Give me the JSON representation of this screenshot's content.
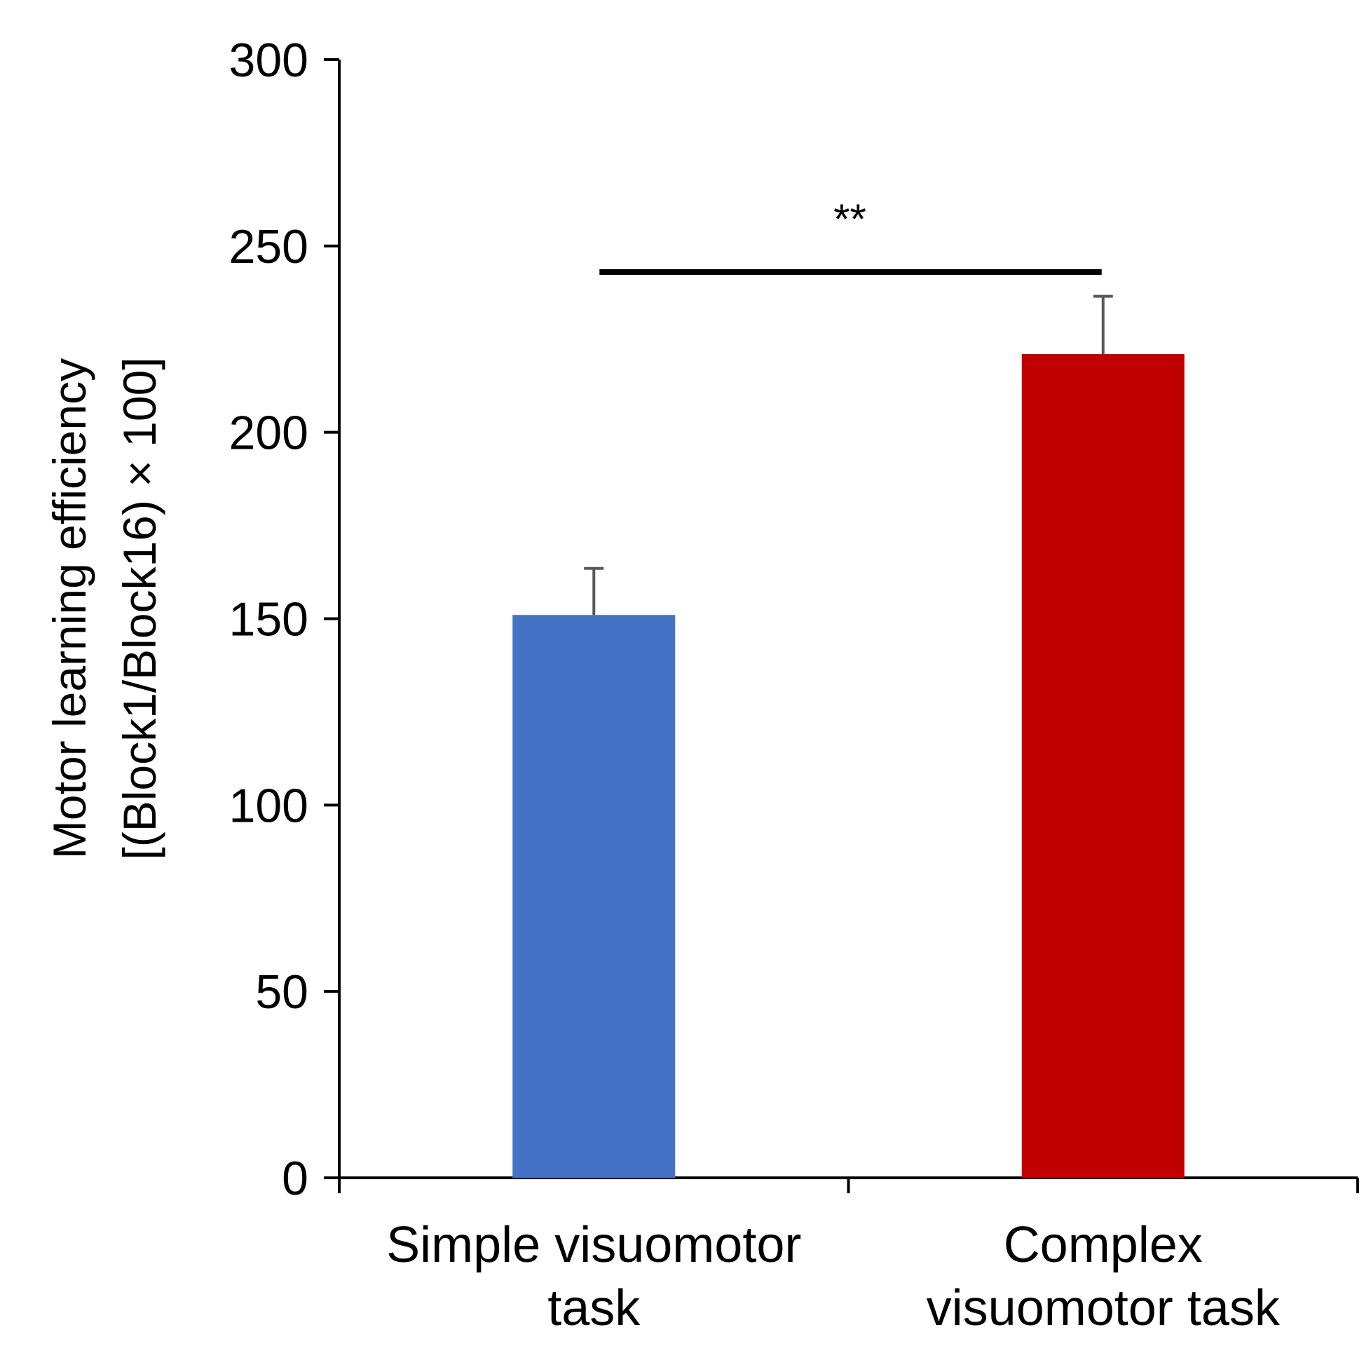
{
  "chart_data": {
    "type": "bar",
    "categories": [
      [
        "Simple visuomotor",
        "task"
      ],
      [
        "Complex",
        "visuomotor task"
      ]
    ],
    "values": [
      151,
      221
    ],
    "errors": [
      12.5,
      15.5
    ],
    "colors": [
      "#4472c4",
      "#c00000"
    ],
    "ylabel": [
      "Motor learning efficiency",
      "[(Block1/Block16) × 100]"
    ],
    "xlabel": "",
    "title": "",
    "ylim": [
      0,
      300
    ],
    "yticks": [
      0,
      50,
      100,
      150,
      200,
      250,
      300
    ],
    "grid": false,
    "legend": "none",
    "significance": {
      "label": "**",
      "between": [
        0,
        1
      ],
      "y": 243
    }
  }
}
